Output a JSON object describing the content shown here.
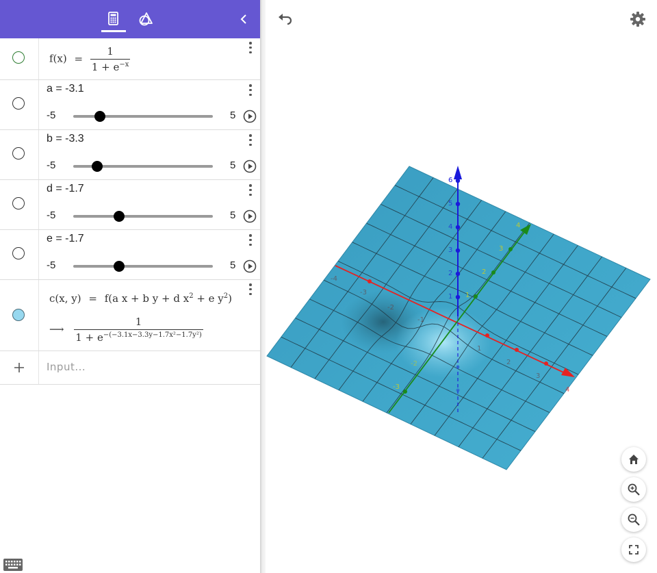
{
  "toolbar": {
    "tabs": [
      {
        "name": "algebra",
        "icon": "calculator-icon",
        "active": true
      },
      {
        "name": "tools",
        "icon": "geometry-tools-icon",
        "active": false
      }
    ],
    "accent_color": "#6557d2"
  },
  "algebra": {
    "function_f": {
      "lhs": "f(x)",
      "eq": "=",
      "numerator": "1",
      "denominator": "1 + e",
      "exponent": "−x"
    },
    "sliders": [
      {
        "label": "a = -3.1",
        "value": -3.1,
        "min_label": "-5",
        "max_label": "5",
        "min": -5,
        "max": 5
      },
      {
        "label": "b = -3.3",
        "value": -3.3,
        "min_label": "-5",
        "max_label": "5",
        "min": -5,
        "max": 5
      },
      {
        "label": "d = -1.7",
        "value": -1.7,
        "min_label": "-5",
        "max_label": "5",
        "min": -5,
        "max": 5
      },
      {
        "label": "e = -1.7",
        "value": -1.7,
        "min_label": "-5",
        "max_label": "5",
        "min": -5,
        "max": 5
      }
    ],
    "function_c": {
      "lhs": "c(x, y)",
      "eq": "=",
      "rhs_prefix": "f(a x + b y + d x",
      "rhs_mid": " + e y",
      "rhs_suffix": ")",
      "sq": "2",
      "arrow": "⟶",
      "numerator": "1",
      "denominator": "1 + e",
      "exponent": "−(−3.1x−3.3y−1.7x²−1.7y²)",
      "color": "#97d8ef"
    },
    "input_placeholder": "Input..."
  },
  "graphics": {
    "surface_color": "#3fa6c9",
    "x_axis_color": "#e52222",
    "y_axis_color": "#1a8a1a",
    "z_axis_color": "#1a1adb",
    "z_labels": [
      "6",
      "5",
      "4",
      "3",
      "2",
      "1"
    ],
    "x_labels": [
      "-4",
      "-3",
      "-2",
      "-1",
      "1",
      "2",
      "3",
      "4"
    ],
    "y_labels": [
      "-3",
      "-2",
      "1",
      "2",
      "3",
      "4"
    ],
    "controls": [
      "home-icon",
      "zoom-in-icon",
      "zoom-out-icon",
      "fullscreen-icon"
    ]
  }
}
